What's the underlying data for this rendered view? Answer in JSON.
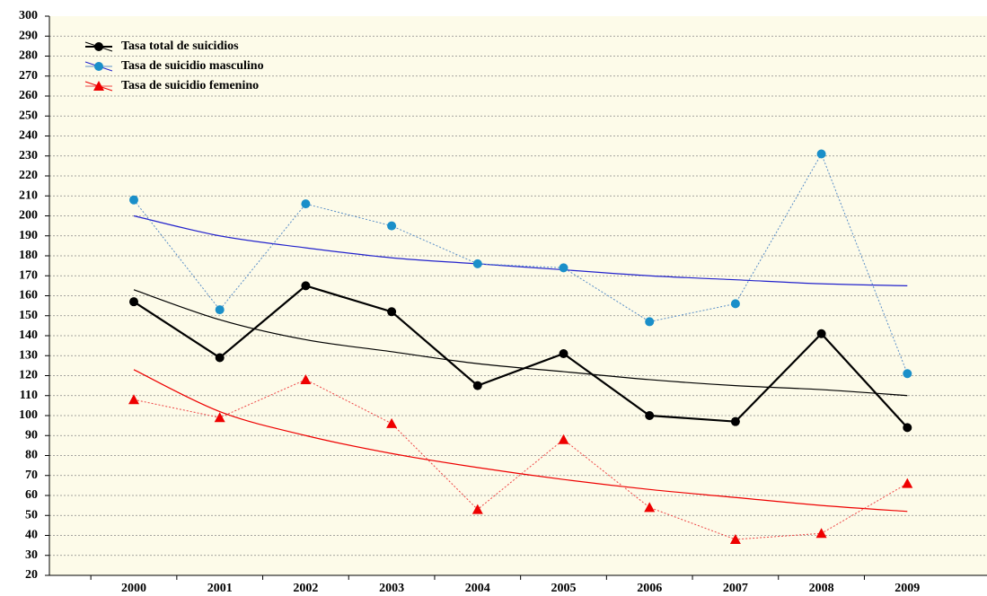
{
  "chart_data": {
    "type": "line",
    "categories": [
      "2000",
      "2001",
      "2002",
      "2003",
      "2004",
      "2005",
      "2006",
      "2007",
      "2008",
      "2009"
    ],
    "ylim": [
      20,
      300
    ],
    "yticks": [
      20,
      30,
      40,
      50,
      60,
      70,
      80,
      90,
      100,
      110,
      120,
      130,
      140,
      150,
      160,
      170,
      180,
      190,
      200,
      210,
      220,
      230,
      240,
      250,
      260,
      270,
      280,
      290,
      300
    ],
    "grid": true,
    "legend": "top-left",
    "series": [
      {
        "name": "Tasa total de suicidios",
        "color": "#000000",
        "marker_color": "#000000",
        "trend_color": "#000000",
        "marker": "circle",
        "line_style": "solid",
        "values": [
          157,
          129,
          165,
          152,
          115,
          131,
          100,
          97,
          141,
          94
        ],
        "trend_values": [
          163,
          148,
          138,
          132,
          126,
          122,
          118,
          115,
          113,
          110
        ]
      },
      {
        "name": "Tasa de suicidio masculino",
        "color": "#5a8fc8",
        "marker_color": "#1a8fc9",
        "trend_color": "#2222cc",
        "marker": "circle",
        "line_style": "dotted",
        "values": [
          208,
          153,
          206,
          195,
          176,
          174,
          147,
          156,
          231,
          121
        ],
        "trend_values": [
          200,
          190,
          184,
          179,
          176,
          173,
          170,
          168,
          166,
          165
        ]
      },
      {
        "name": "Tasa de suicidio femenino",
        "color": "#ee4444",
        "marker_color": "#ee0000",
        "trend_color": "#ee0000",
        "marker": "triangle",
        "line_style": "dotted",
        "values": [
          108,
          99,
          118,
          96,
          53,
          88,
          54,
          38,
          41,
          66
        ],
        "trend_values": [
          123,
          102,
          90,
          81,
          74,
          68,
          63,
          59,
          55,
          52
        ]
      }
    ]
  }
}
